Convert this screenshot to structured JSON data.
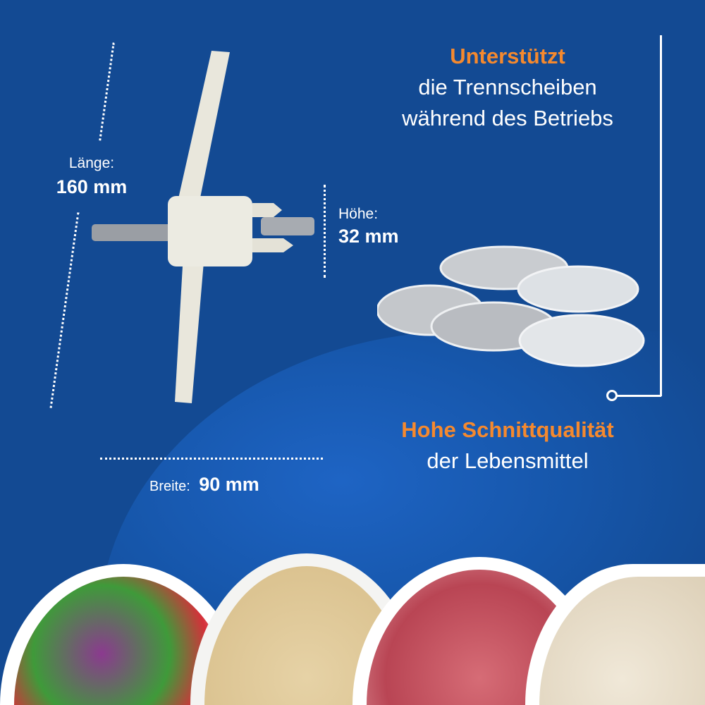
{
  "headline_top": {
    "highlight": "Unterstützt",
    "line1": "die Trennscheiben",
    "line2": "während des Betriebs"
  },
  "headline_bottom": {
    "highlight": "Hohe Schnittqualität",
    "line1": "der Lebensmittel"
  },
  "dimensions": {
    "length": {
      "label": "Länge:",
      "value": "160 mm"
    },
    "height": {
      "label": "Höhe:",
      "value": "32 mm"
    },
    "width": {
      "label": "Breite:",
      "value": "90 mm"
    }
  },
  "colors": {
    "background": "#134a93",
    "accent": "#f5892e",
    "text": "#ffffff"
  }
}
